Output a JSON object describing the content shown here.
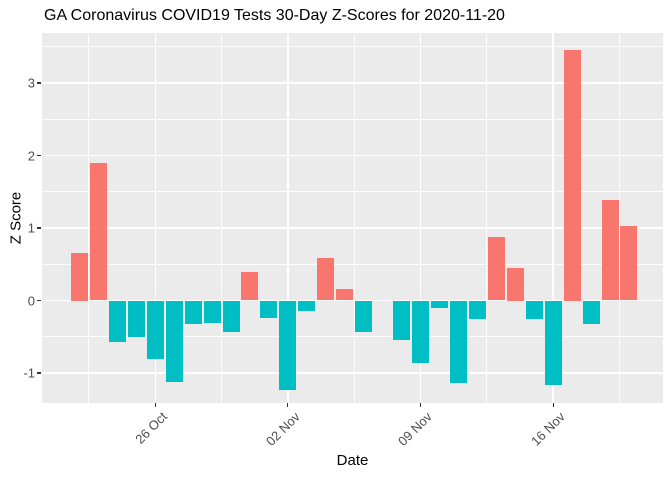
{
  "chart_data": {
    "type": "bar",
    "title": "GA Coronavirus COVID19 Tests 30-Day Z-Scores for 2020-11-20",
    "xlabel": "Date",
    "ylabel": "Z Score",
    "categories": [
      "22 Oct",
      "23 Oct",
      "24 Oct",
      "25 Oct",
      "26 Oct",
      "27 Oct",
      "28 Oct",
      "29 Oct",
      "30 Oct",
      "31 Oct",
      "01 Nov",
      "02 Nov",
      "03 Nov",
      "04 Nov",
      "05 Nov",
      "06 Nov",
      "07 Nov",
      "08 Nov",
      "09 Nov",
      "10 Nov",
      "11 Nov",
      "12 Nov",
      "13 Nov",
      "14 Nov",
      "15 Nov",
      "16 Nov",
      "17 Nov",
      "18 Nov",
      "19 Nov",
      "20 Nov"
    ],
    "values": [
      0.65,
      1.89,
      -0.57,
      -0.51,
      -0.81,
      -1.13,
      -0.33,
      -0.31,
      -0.43,
      0.39,
      -0.24,
      -1.23,
      -0.15,
      0.58,
      0.16,
      -0.43,
      0,
      -0.55,
      -0.86,
      -0.11,
      -1.14,
      -0.26,
      0.88,
      0.45,
      -0.25,
      -1.16,
      3.45,
      -0.32,
      1.38,
      1.03
    ],
    "x_tick_labels": [
      "26 Oct",
      "02 Nov",
      "09 Nov",
      "16 Nov"
    ],
    "y_ticks": [
      -1,
      0,
      1,
      2,
      3
    ],
    "y_tick_labels": [
      "-1",
      "0",
      "1",
      "2",
      "3"
    ],
    "y_minor_ticks": [
      -0.5,
      0.5,
      1.5,
      2.5,
      3.5
    ],
    "ylim": [
      -1.41,
      3.69
    ],
    "grid": "white major and minor gridlines on grey panel",
    "legend": "none",
    "colors": {
      "positive_bar": "#F8766D",
      "negative_bar": "#00BFC4",
      "panel_background": "#EBEBEB",
      "gridline": "#FFFFFF",
      "axis_text": "#4D4D4D",
      "title_text": "#000000"
    }
  }
}
